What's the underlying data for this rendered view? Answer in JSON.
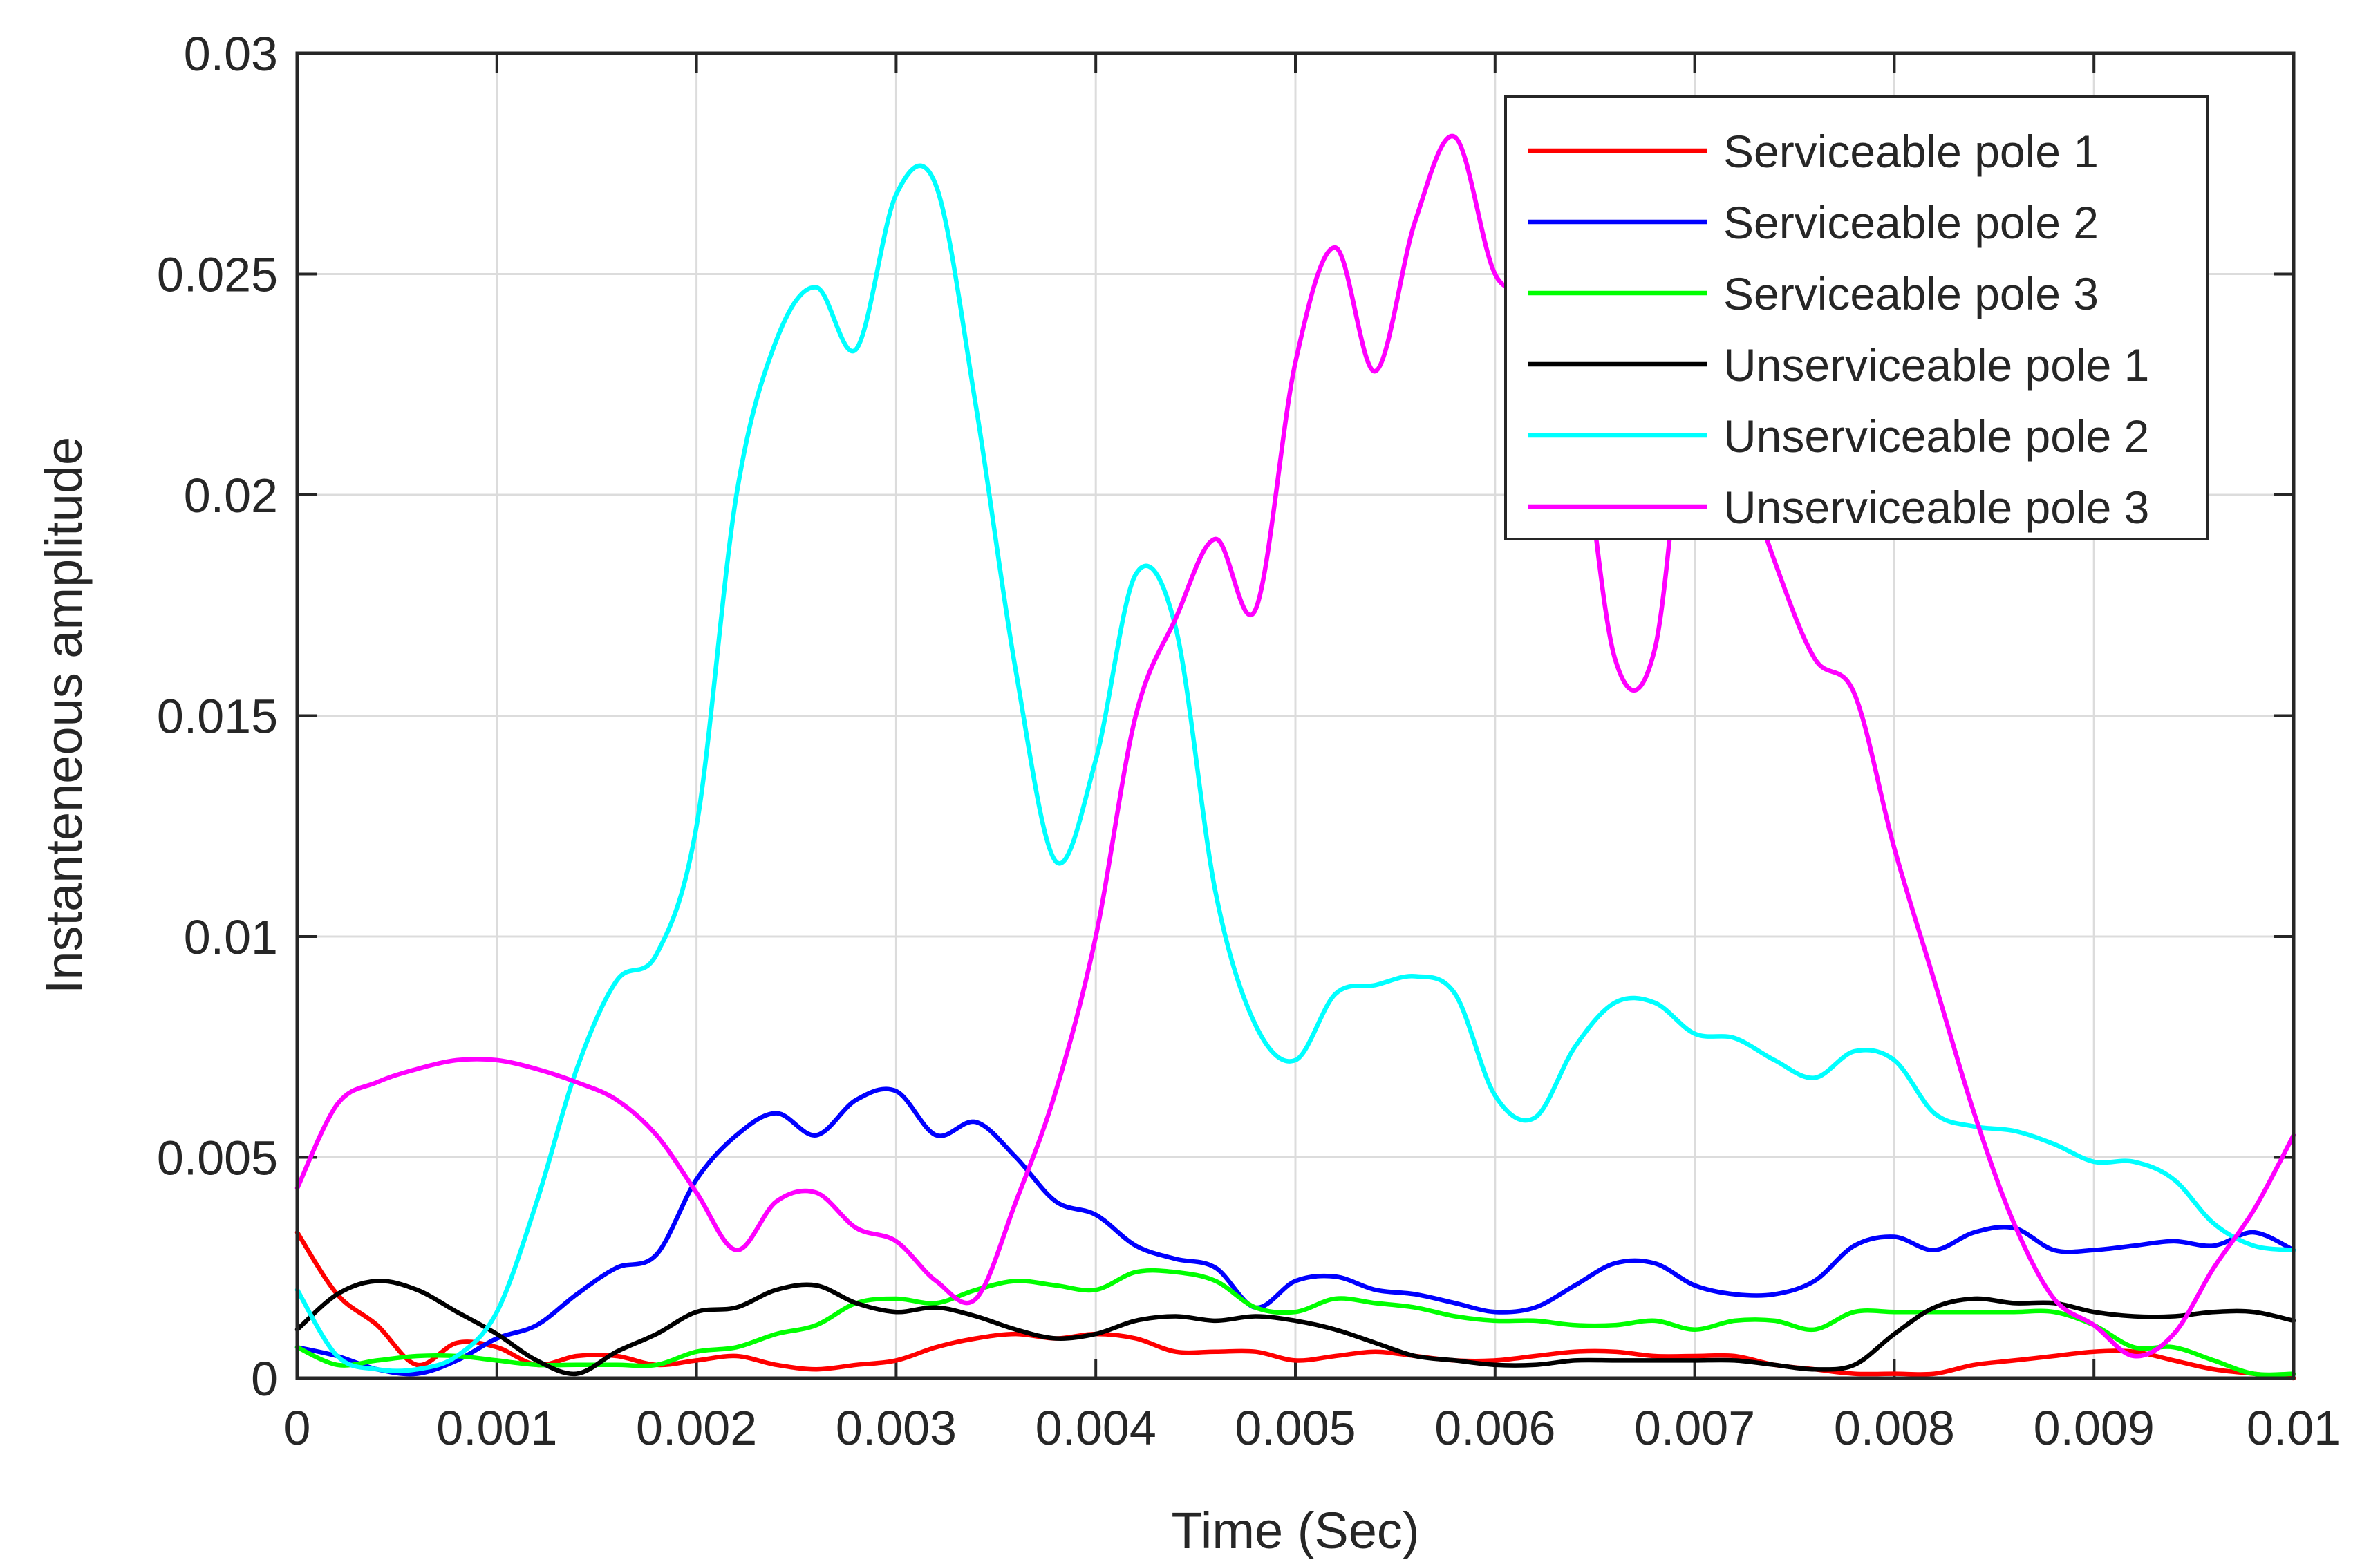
{
  "chart_data": {
    "type": "line",
    "title": "",
    "xlabel": "Time (Sec)",
    "ylabel": "Instanteneous amplitude",
    "xlim": [
      0,
      0.01
    ],
    "ylim": [
      0,
      0.03
    ],
    "grid": true,
    "legend_position": "top-right",
    "x_ticks": [
      "0",
      "0.001",
      "0.002",
      "0.003",
      "0.004",
      "0.005",
      "0.006",
      "0.007",
      "0.008",
      "0.009",
      "0.01"
    ],
    "y_ticks": [
      "0",
      "0.005",
      "0.01",
      "0.015",
      "0.02",
      "0.025",
      "0.03"
    ],
    "x": [
      0,
      0.0002,
      0.0004,
      0.0006,
      0.0008,
      0.001,
      0.0012,
      0.0014,
      0.0016,
      0.0018,
      0.002,
      0.0022,
      0.0024,
      0.0026,
      0.0028,
      0.003,
      0.0032,
      0.0034,
      0.0036,
      0.0038,
      0.004,
      0.0042,
      0.0044,
      0.0046,
      0.0048,
      0.005,
      0.0052,
      0.0054,
      0.0056,
      0.0058,
      0.006,
      0.0062,
      0.0064,
      0.0066,
      0.0068,
      0.007,
      0.0072,
      0.0074,
      0.0076,
      0.0078,
      0.008,
      0.0082,
      0.0084,
      0.0086,
      0.0088,
      0.009,
      0.0092,
      0.0094,
      0.0096,
      0.0098,
      0.01
    ],
    "series": [
      {
        "name": "Serviceable pole 1",
        "color": "#ff0000",
        "values": [
          0.0033,
          0.0019,
          0.0012,
          0.0003,
          0.0008,
          0.0007,
          0.0003,
          0.0005,
          0.0005,
          0.0003,
          0.0004,
          0.0005,
          0.0003,
          0.0002,
          0.0003,
          0.0004,
          0.0007,
          0.0009,
          0.001,
          0.0009,
          0.001,
          0.0009,
          0.0006,
          0.0006,
          0.0006,
          0.0004,
          0.0005,
          0.0006,
          0.0005,
          0.0004,
          0.0004,
          0.0005,
          0.0006,
          0.0006,
          0.0005,
          0.0005,
          0.0005,
          0.0003,
          0.0002,
          0.0001,
          0.0001,
          0.0001,
          0.0003,
          0.0004,
          0.0005,
          0.0006,
          0.0006,
          0.0004,
          0.0002,
          0.0001,
          0.0
        ]
      },
      {
        "name": "Serviceable pole 2",
        "color": "#0000ff",
        "values": [
          0.0007,
          0.0005,
          0.0002,
          0.0001,
          0.0004,
          0.0009,
          0.0012,
          0.0019,
          0.0025,
          0.0028,
          0.0045,
          0.0055,
          0.006,
          0.0055,
          0.0063,
          0.0065,
          0.0055,
          0.0058,
          0.005,
          0.004,
          0.0037,
          0.003,
          0.0027,
          0.0025,
          0.0016,
          0.0022,
          0.0023,
          0.002,
          0.0019,
          0.0017,
          0.0015,
          0.0016,
          0.0021,
          0.0026,
          0.0026,
          0.0021,
          0.0019,
          0.0019,
          0.0022,
          0.003,
          0.0032,
          0.0029,
          0.0033,
          0.0034,
          0.0029,
          0.0029,
          0.003,
          0.0031,
          0.003,
          0.0033,
          0.0029
        ]
      },
      {
        "name": "Serviceable pole 3",
        "color": "#00ff00",
        "values": [
          0.0007,
          0.0003,
          0.0004,
          0.0005,
          0.0005,
          0.0004,
          0.0003,
          0.0003,
          0.0003,
          0.0003,
          0.0006,
          0.0007,
          0.001,
          0.0012,
          0.0017,
          0.0018,
          0.0017,
          0.002,
          0.0022,
          0.0021,
          0.002,
          0.0024,
          0.0024,
          0.0022,
          0.0016,
          0.0015,
          0.0018,
          0.0017,
          0.0016,
          0.0014,
          0.0013,
          0.0013,
          0.0012,
          0.0012,
          0.0013,
          0.0011,
          0.0013,
          0.0013,
          0.0011,
          0.0015,
          0.0015,
          0.0015,
          0.0015,
          0.0015,
          0.0015,
          0.0012,
          0.0007,
          0.0007,
          0.0004,
          0.0001,
          0.0001
        ]
      },
      {
        "name": "Unserviceable pole 1",
        "color": "#000000",
        "values": [
          0.0011,
          0.0019,
          0.0022,
          0.002,
          0.0015,
          0.001,
          0.0004,
          0.0001,
          0.0006,
          0.001,
          0.0015,
          0.0016,
          0.002,
          0.0021,
          0.0017,
          0.0015,
          0.0016,
          0.0014,
          0.0011,
          0.0009,
          0.001,
          0.0013,
          0.0014,
          0.0013,
          0.0014,
          0.0013,
          0.0011,
          0.0008,
          0.0005,
          0.0004,
          0.0003,
          0.0003,
          0.0004,
          0.0004,
          0.0004,
          0.0004,
          0.0004,
          0.0003,
          0.0002,
          0.0003,
          0.001,
          0.0016,
          0.0018,
          0.0017,
          0.0017,
          0.0015,
          0.0014,
          0.0014,
          0.0015,
          0.0015,
          0.0013
        ]
      },
      {
        "name": "Unserviceable pole 2",
        "color": "#00ffff",
        "values": [
          0.002,
          0.0005,
          0.0002,
          0.0002,
          0.0005,
          0.0015,
          0.004,
          0.007,
          0.009,
          0.0096,
          0.0125,
          0.02,
          0.0235,
          0.0247,
          0.0233,
          0.0268,
          0.027,
          0.022,
          0.016,
          0.0117,
          0.014,
          0.0182,
          0.017,
          0.011,
          0.008,
          0.0072,
          0.0087,
          0.0089,
          0.0091,
          0.0087,
          0.0064,
          0.0059,
          0.0075,
          0.0085,
          0.0085,
          0.0078,
          0.0077,
          0.0072,
          0.0068,
          0.0074,
          0.0072,
          0.006,
          0.0057,
          0.0056,
          0.0053,
          0.0049,
          0.0049,
          0.0045,
          0.0035,
          0.003,
          0.0029
        ]
      },
      {
        "name": "Unserviceable pole 3",
        "color": "#ff00ff",
        "values": [
          0.0043,
          0.0062,
          0.0067,
          0.007,
          0.0072,
          0.0072,
          0.007,
          0.0067,
          0.0063,
          0.0055,
          0.0042,
          0.0029,
          0.004,
          0.0042,
          0.0034,
          0.0031,
          0.0022,
          0.0018,
          0.004,
          0.0065,
          0.01,
          0.015,
          0.0172,
          0.019,
          0.0174,
          0.023,
          0.0256,
          0.0228,
          0.0262,
          0.0281,
          0.025,
          0.0245,
          0.0225,
          0.0163,
          0.0165,
          0.0235,
          0.0212,
          0.0185,
          0.0163,
          0.0155,
          0.012,
          0.009,
          0.006,
          0.0035,
          0.0018,
          0.0012,
          0.0005,
          0.001,
          0.0025,
          0.0038,
          0.0055
        ]
      }
    ]
  }
}
